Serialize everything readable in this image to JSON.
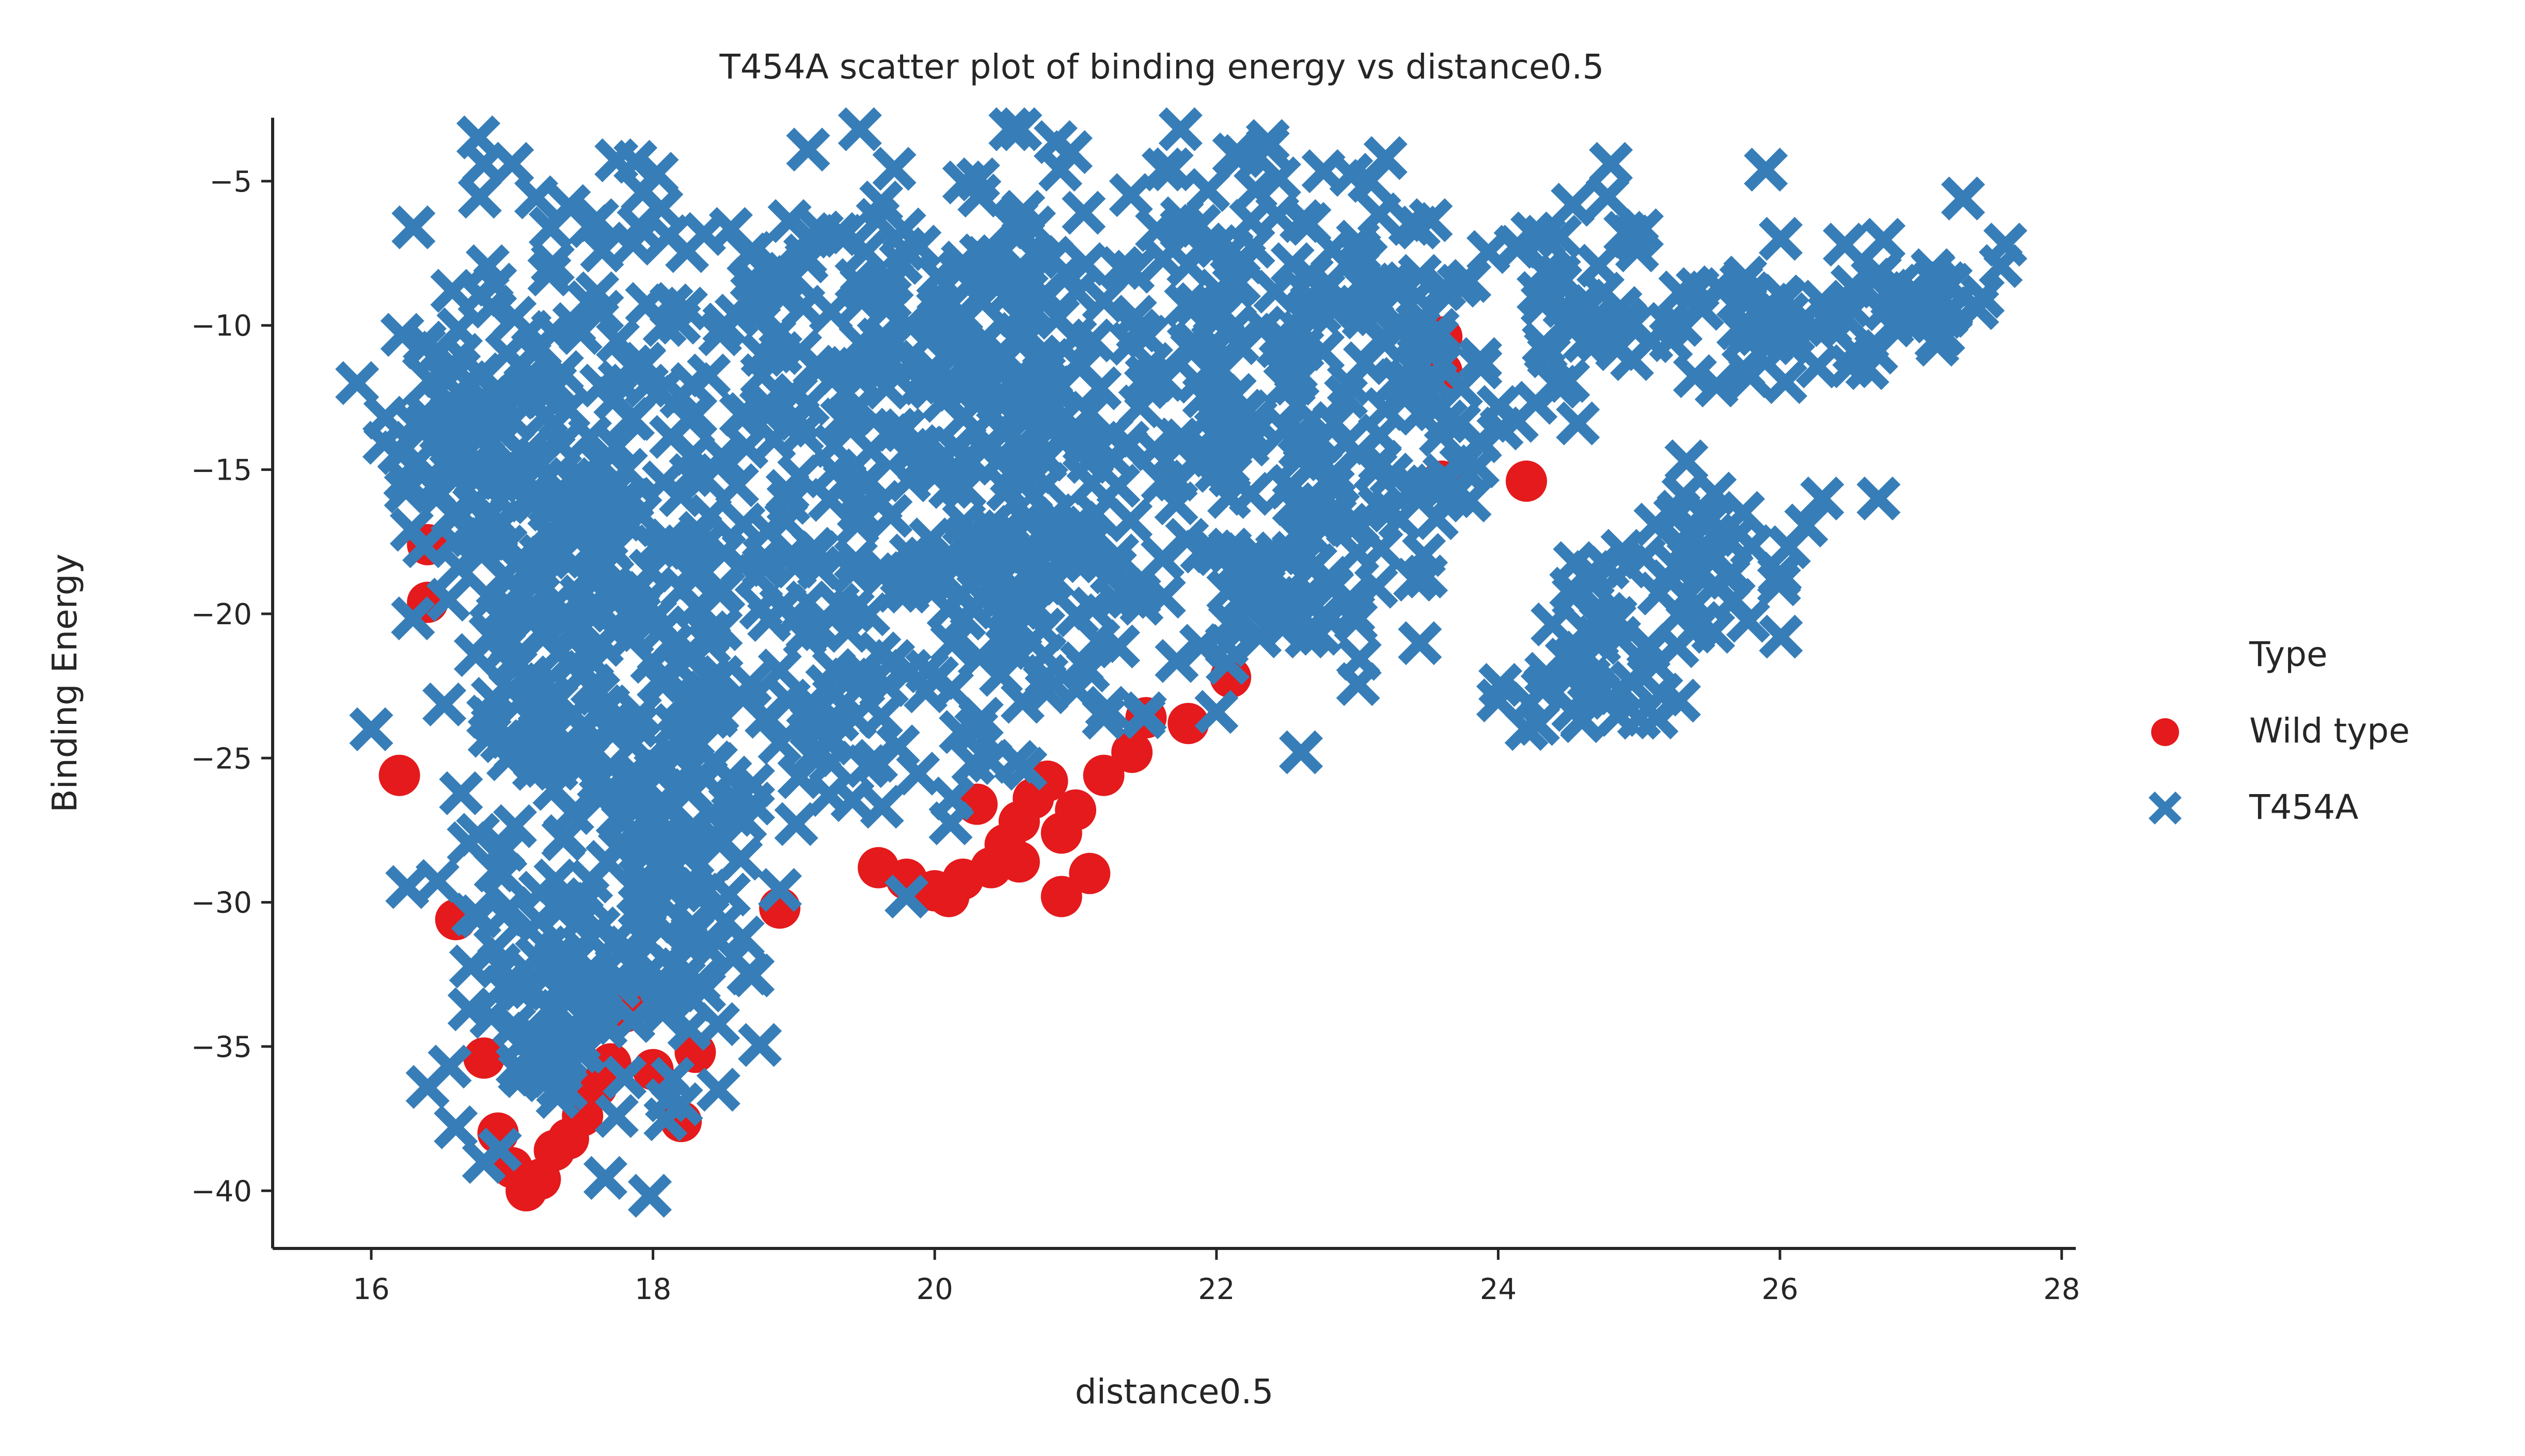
{
  "chart_data": {
    "type": "scatter",
    "title": "T454A scatter plot of binding energy vs distance0.5",
    "xlabel": "distance0.5",
    "ylabel": "Binding Energy",
    "xlim": [
      15.3,
      28.1
    ],
    "ylim": [
      -42.0,
      -2.8
    ],
    "xticks": [
      16,
      18,
      20,
      22,
      24,
      26,
      28
    ],
    "xtick_labels": [
      "16",
      "18",
      "20",
      "22",
      "24",
      "26",
      "28"
    ],
    "yticks": [
      -5,
      -10,
      -15,
      -20,
      -25,
      -30,
      -35,
      -40
    ],
    "ytick_labels": [
      "−5",
      "−10",
      "−15",
      "−20",
      "−25",
      "−30",
      "−35",
      "−40"
    ],
    "grid": false,
    "legend": {
      "title": "Type",
      "placement": "right",
      "entries": [
        {
          "label": "Wild type",
          "marker": "circle",
          "color": "#e41a1c"
        },
        {
          "label": "T454A",
          "marker": "x",
          "color": "#377eb8"
        }
      ]
    },
    "series": [
      {
        "name": "Wild type",
        "marker": "circle",
        "color": "#e41a1c",
        "points": [
          [
            17.1,
            -40.0
          ],
          [
            17.2,
            -39.6
          ],
          [
            17.0,
            -39.2
          ],
          [
            16.9,
            -38.0
          ],
          [
            17.3,
            -38.6
          ],
          [
            17.4,
            -38.2
          ],
          [
            17.5,
            -37.4
          ],
          [
            17.6,
            -36.4
          ],
          [
            17.7,
            -35.6
          ],
          [
            18.2,
            -37.6
          ],
          [
            18.0,
            -35.8
          ],
          [
            18.3,
            -35.2
          ],
          [
            17.8,
            -33.8
          ],
          [
            16.4,
            -19.6
          ],
          [
            16.2,
            -25.6
          ],
          [
            16.4,
            -17.6
          ],
          [
            16.6,
            -30.6
          ],
          [
            16.8,
            -35.4
          ],
          [
            20.0,
            -29.6
          ],
          [
            20.1,
            -29.8
          ],
          [
            20.2,
            -29.2
          ],
          [
            20.4,
            -28.8
          ],
          [
            20.5,
            -28.0
          ],
          [
            20.6,
            -27.2
          ],
          [
            20.7,
            -26.4
          ],
          [
            20.8,
            -25.8
          ],
          [
            20.9,
            -29.8
          ],
          [
            21.1,
            -29.0
          ],
          [
            20.9,
            -27.6
          ],
          [
            21.0,
            -26.8
          ],
          [
            21.2,
            -25.6
          ],
          [
            21.4,
            -24.8
          ],
          [
            21.8,
            -23.8
          ],
          [
            22.1,
            -22.2
          ],
          [
            19.6,
            -28.8
          ],
          [
            19.8,
            -29.2
          ],
          [
            20.3,
            -26.6
          ],
          [
            20.6,
            -28.6
          ],
          [
            23.6,
            -11.6
          ],
          [
            23.6,
            -10.4
          ],
          [
            23.6,
            -15.4
          ],
          [
            24.2,
            -15.4
          ],
          [
            18.9,
            -30.2
          ],
          [
            17.9,
            -32.8
          ],
          [
            21.5,
            -23.6
          ]
        ]
      },
      {
        "name": "T454A",
        "marker": "x",
        "color": "#377eb8",
        "clusters": [
          {
            "center": [
              17.4,
              -22.0
            ],
            "spread": [
              0.55,
              9.0
            ],
            "n": 260
          },
          {
            "center": [
              16.6,
              -14.0
            ],
            "spread": [
              0.35,
              3.0
            ],
            "n": 60
          },
          {
            "center": [
              18.2,
              -28.0
            ],
            "spread": [
              0.35,
              4.0
            ],
            "n": 60
          },
          {
            "center": [
              17.3,
              -34.0
            ],
            "spread": [
              0.4,
              1.8
            ],
            "n": 40
          },
          {
            "center": [
              18.3,
              -33.5
            ],
            "spread": [
              0.25,
              1.8
            ],
            "n": 20
          },
          {
            "center": [
              19.0,
              -14.0
            ],
            "spread": [
              1.0,
              6.5
            ],
            "n": 180
          },
          {
            "center": [
              20.5,
              -12.0
            ],
            "spread": [
              1.0,
              5.5
            ],
            "n": 180
          },
          {
            "center": [
              19.6,
              -22.0
            ],
            "spread": [
              0.9,
              3.2
            ],
            "n": 80
          },
          {
            "center": [
              20.8,
              -19.5
            ],
            "spread": [
              0.6,
              2.5
            ],
            "n": 50
          },
          {
            "center": [
              22.2,
              -11.5
            ],
            "spread": [
              0.8,
              5.0
            ],
            "n": 140
          },
          {
            "center": [
              22.4,
              -19.0
            ],
            "spread": [
              0.5,
              2.0
            ],
            "n": 40
          },
          {
            "center": [
              23.3,
              -12.0
            ],
            "spread": [
              0.55,
              4.5
            ],
            "n": 80
          },
          {
            "center": [
              24.6,
              -9.0
            ],
            "spread": [
              0.4,
              2.6
            ],
            "n": 40
          },
          {
            "center": [
              24.8,
              -21.0
            ],
            "spread": [
              0.45,
              2.0
            ],
            "n": 50
          },
          {
            "center": [
              25.4,
              -18.0
            ],
            "spread": [
              0.45,
              2.0
            ],
            "n": 35
          },
          {
            "center": [
              26.0,
              -9.8
            ],
            "spread": [
              0.55,
              1.5
            ],
            "n": 50
          },
          {
            "center": [
              27.0,
              -9.0
            ],
            "spread": [
              0.35,
              1.2
            ],
            "n": 25
          }
        ],
        "extra_points": [
          [
            15.9,
            -12.0
          ],
          [
            16.0,
            -24.0
          ],
          [
            16.8,
            -39.0
          ],
          [
            16.8,
            -4.4
          ],
          [
            17.0,
            -4.4
          ],
          [
            23.2,
            -4.2
          ],
          [
            24.8,
            -4.4
          ],
          [
            25.9,
            -4.6
          ],
          [
            27.3,
            -5.6
          ],
          [
            27.6,
            -7.2
          ],
          [
            27.4,
            -9.4
          ],
          [
            26.3,
            -16.0
          ],
          [
            26.7,
            -16.0
          ],
          [
            26.0,
            -18.6
          ],
          [
            22.6,
            -24.8
          ],
          [
            18.2,
            -37.0
          ],
          [
            19.8,
            -29.8
          ],
          [
            21.2,
            -23.6
          ],
          [
            22.0,
            -23.4
          ],
          [
            16.2,
            -14.4
          ],
          [
            16.1,
            -13.2
          ],
          [
            16.3,
            -6.6
          ],
          [
            24.0,
            -23.0
          ],
          [
            25.0,
            -23.6
          ],
          [
            16.4,
            -36.4
          ],
          [
            16.6,
            -37.8
          ]
        ]
      }
    ]
  }
}
